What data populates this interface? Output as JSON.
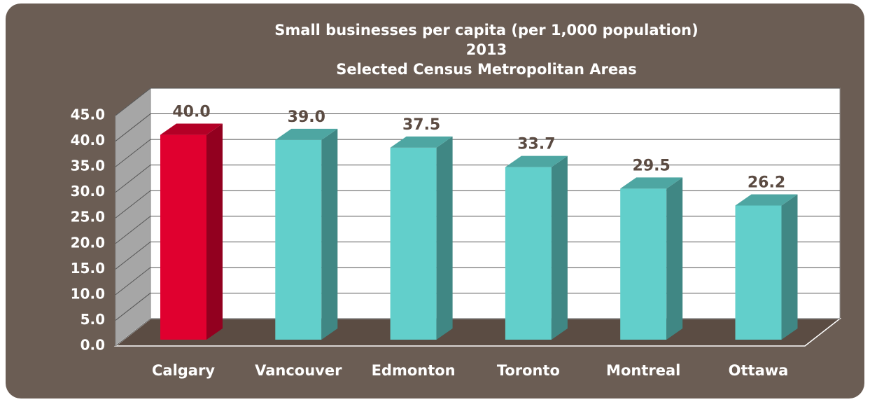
{
  "chart_data": {
    "type": "bar3d",
    "title": "Small businesses per capita (per 1,000 population)",
    "subtitle": "2013",
    "subtitle2": "Selected Census Metropolitan Areas",
    "categories": [
      "Calgary",
      "Vancouver",
      "Edmonton",
      "Toronto",
      "Montreal",
      "Ottawa"
    ],
    "values": [
      40.0,
      39.0,
      37.5,
      33.7,
      29.5,
      26.2
    ],
    "value_labels": [
      "40.0",
      "39.0",
      "37.5",
      "33.7",
      "29.5",
      "26.2"
    ],
    "colors": [
      "#e0002f",
      "#62cfcb",
      "#62cfcb",
      "#62cfcb",
      "#62cfcb",
      "#62cfcb"
    ],
    "ylim": [
      0,
      45
    ],
    "yticks": [
      {
        "value": 0,
        "label": "0.0"
      },
      {
        "value": 5,
        "label": "5.0"
      },
      {
        "value": 10,
        "label": "10.0"
      },
      {
        "value": 15,
        "label": "15.0"
      },
      {
        "value": 20,
        "label": "20.0"
      },
      {
        "value": 25,
        "label": "25.0"
      },
      {
        "value": 30,
        "label": "30.0"
      },
      {
        "value": 35,
        "label": "35.0"
      },
      {
        "value": 40,
        "label": "40.0"
      },
      {
        "value": 45,
        "label": "45.0"
      }
    ],
    "grid": true
  }
}
